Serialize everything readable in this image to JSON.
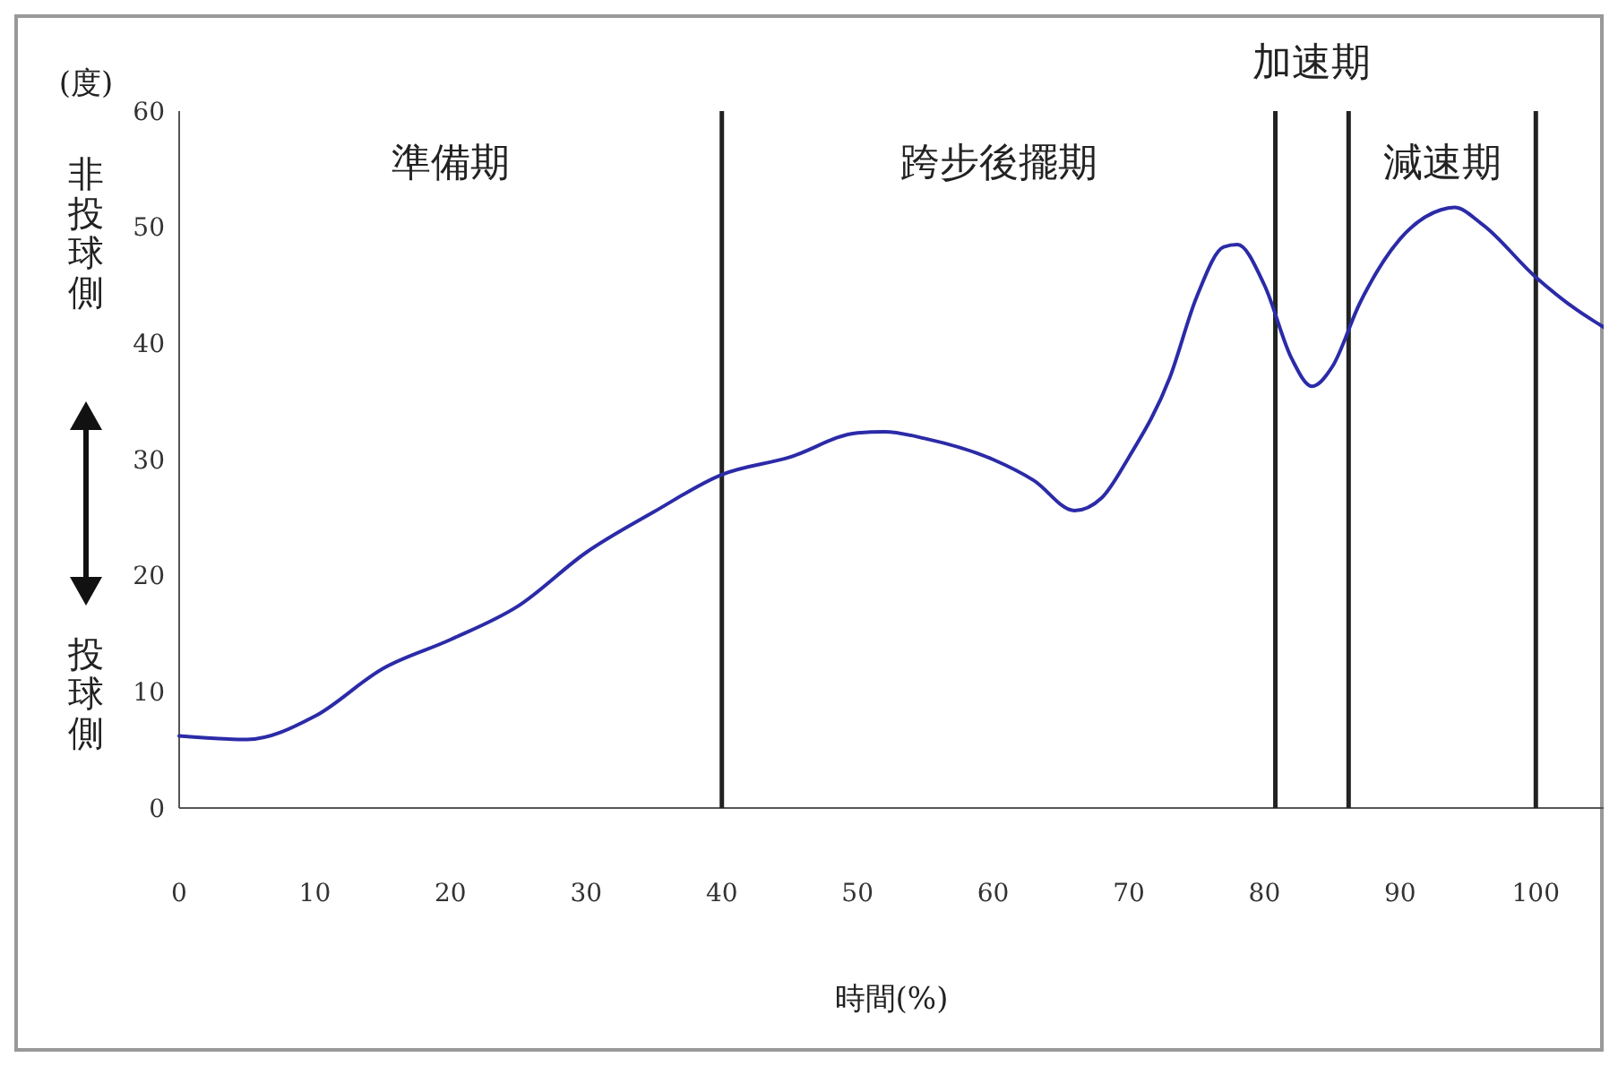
{
  "chart_data": {
    "type": "line",
    "ylabel": "(度)",
    "xlabel": "時間(%)",
    "xlim": [
      0,
      105
    ],
    "ylim": [
      0,
      60
    ],
    "xticks": [
      0,
      10,
      20,
      30,
      40,
      50,
      60,
      70,
      80,
      90,
      100
    ],
    "yticks": [
      0,
      10,
      20,
      30,
      40,
      50,
      60
    ],
    "grid": false,
    "marker": "none",
    "line_style": "solid",
    "x": [
      0,
      5,
      10,
      15,
      20,
      25,
      30,
      35,
      40,
      45,
      50,
      52,
      55,
      60,
      63,
      66,
      68,
      70,
      73,
      75,
      77,
      78,
      80,
      82,
      83.5,
      85,
      87,
      90,
      93,
      94,
      96,
      100,
      103,
      105
    ],
    "series": [
      {
        "color": "#2b2ba8",
        "values": [
          6.2,
          5.9,
          7.9,
          12,
          14.5,
          17.4,
          22,
          25.5,
          28.7,
          30.2,
          32.3,
          32.4,
          31.8,
          30,
          28.2,
          25.6,
          26.7,
          30.2,
          37,
          44,
          48.3,
          48.5,
          45,
          38.7,
          36.3,
          38,
          43.4,
          49,
          51.5,
          51.7,
          50.3,
          45.7,
          42.9,
          41.4
        ]
      }
    ],
    "ref_lines": [
      {
        "axis": "x",
        "value": 40,
        "color": "#222222"
      },
      {
        "axis": "x",
        "value": 80.8,
        "color": "#222222"
      },
      {
        "axis": "x",
        "value": 86.2,
        "color": "#222222"
      },
      {
        "axis": "x",
        "value": 100,
        "color": "#222222"
      }
    ],
    "annotations": [
      "準備期",
      "跨步後擺期",
      "加速期",
      "減速期",
      "非投球側",
      "投球側"
    ]
  }
}
